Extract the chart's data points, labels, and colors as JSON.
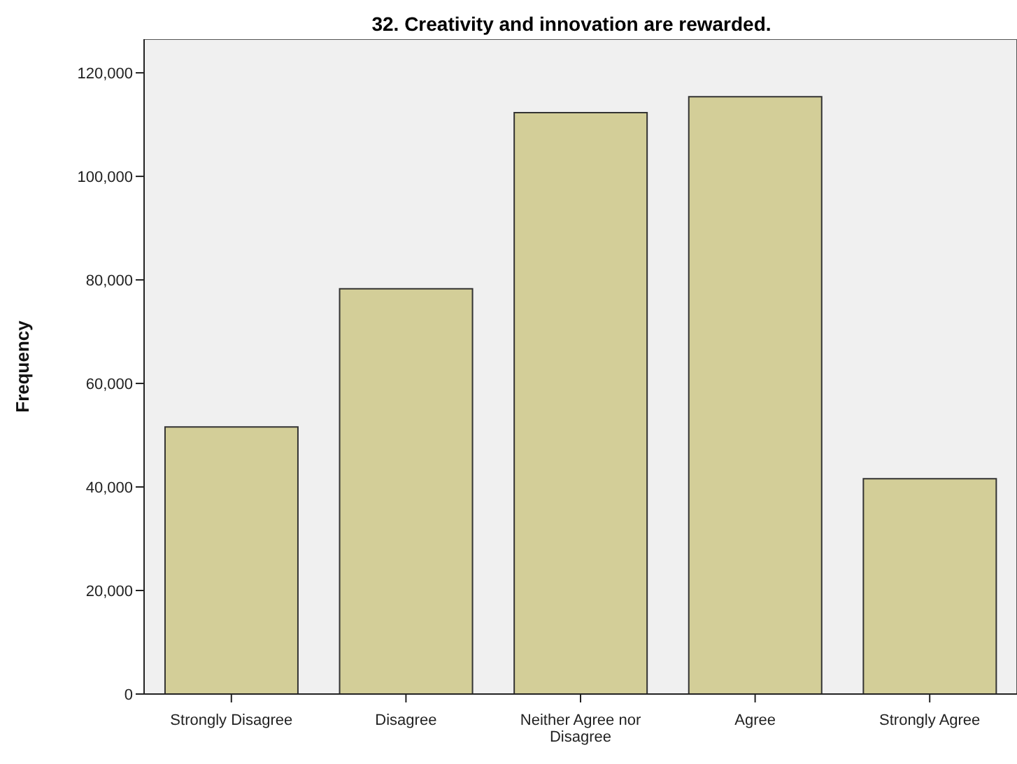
{
  "chart_data": {
    "type": "bar",
    "title": "32. Creativity and innovation are rewarded.",
    "ylabel": "Frequency",
    "categories": [
      "Strongly Disagree",
      "Disagree",
      "Neither Agree nor Disagree",
      "Agree",
      "Strongly Agree"
    ],
    "values": [
      51600,
      78300,
      112300,
      115400,
      41600
    ],
    "color": "#d3ce98",
    "ylim": [
      0,
      126500
    ],
    "yticks": [
      0,
      {
        "value": 20000,
        "label": "20,000"
      },
      {
        "value": 40000,
        "label": "40,000"
      },
      {
        "value": 60000,
        "label": "60,000"
      },
      {
        "value": 80000,
        "label": "80,000"
      },
      {
        "value": 100000,
        "label": "100,000"
      },
      {
        "value": 120000,
        "label": "120,000"
      }
    ]
  }
}
